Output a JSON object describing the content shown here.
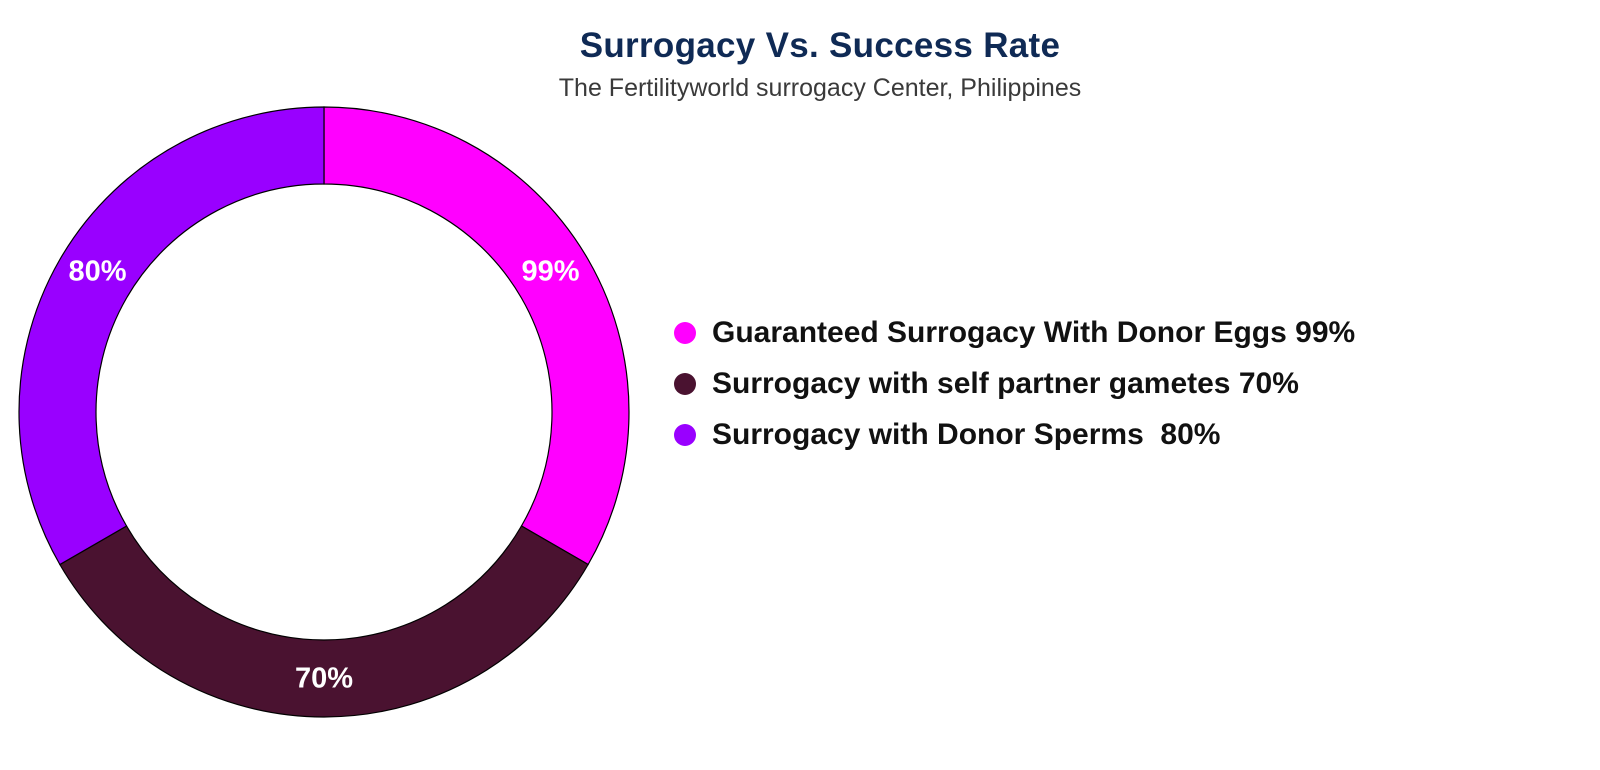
{
  "title": "Surrogacy Vs. Success Rate",
  "subtitle": "The Fertilityworld surrogacy Center, Philippines",
  "chart_data": {
    "type": "pie",
    "style": "donut",
    "slices": [
      {
        "name": "Guaranteed Surrogacy With Donor Eggs 99%",
        "value": 99,
        "label": "99%",
        "color": "#ff00ff"
      },
      {
        "name": "Surrogacy with self partner gametes 70%",
        "value": 70,
        "label": "70%",
        "color": "#4a1230"
      },
      {
        "name": "Surrogacy with Donor Sperms  80%",
        "value": 80,
        "label": "80%",
        "color": "#9900ff"
      }
    ],
    "slice_angles_deg": [
      120,
      120,
      120
    ],
    "legend_position": "right"
  }
}
